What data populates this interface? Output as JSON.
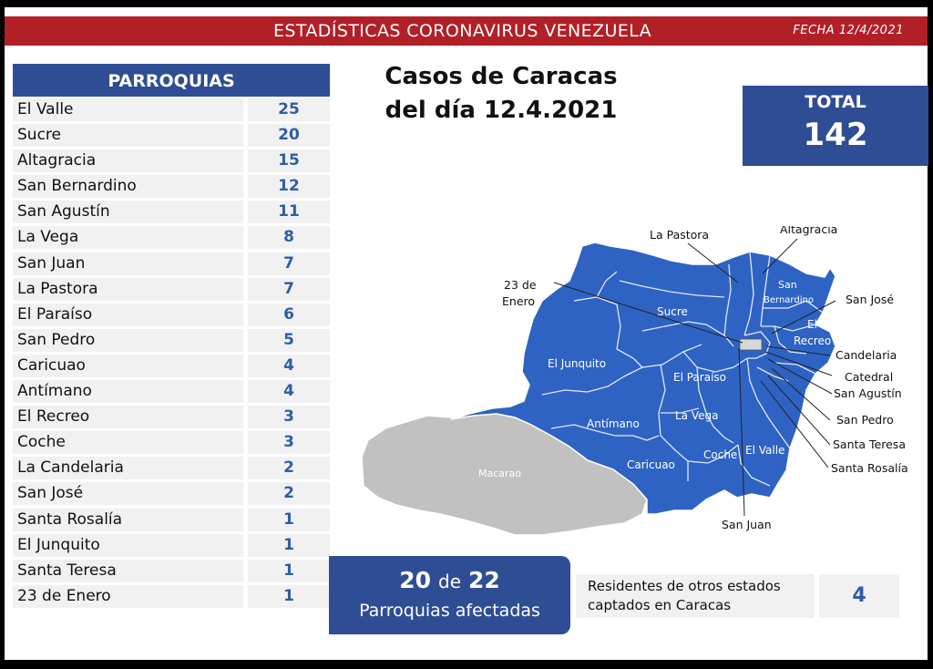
{
  "header": {
    "title": "ESTADÍSTICAS CORONAVIRUS VENEZUELA",
    "date": "FECHA 12/4/2021"
  },
  "table": {
    "header": "PARROQUIAS",
    "rows": [
      {
        "name": "El Valle",
        "value": "25"
      },
      {
        "name": "Sucre",
        "value": "20"
      },
      {
        "name": "Altagracia",
        "value": "15"
      },
      {
        "name": "San Bernardino",
        "value": "12"
      },
      {
        "name": "San Agustín",
        "value": "11"
      },
      {
        "name": "La Vega",
        "value": "8"
      },
      {
        "name": "San Juan",
        "value": "7"
      },
      {
        "name": "La Pastora",
        "value": "7"
      },
      {
        "name": "El Paraíso",
        "value": "6"
      },
      {
        "name": "San Pedro",
        "value": "5"
      },
      {
        "name": "Caricuao",
        "value": "4"
      },
      {
        "name": "Antímano",
        "value": "4"
      },
      {
        "name": "El Recreo",
        "value": "3"
      },
      {
        "name": "Coche",
        "value": "3"
      },
      {
        "name": "La Candelaria",
        "value": "2"
      },
      {
        "name": "San José",
        "value": "2"
      },
      {
        "name": "Santa Rosalía",
        "value": "1"
      },
      {
        "name": "El Junquito",
        "value": "1"
      },
      {
        "name": "Santa Teresa",
        "value": "1"
      },
      {
        "name": "23 de Enero",
        "value": "1"
      }
    ]
  },
  "map_title": {
    "line1": "Casos de Caracas",
    "line2": "del día 12.4.2021"
  },
  "total": {
    "label": "TOTAL",
    "value": "142"
  },
  "map": {
    "colors": {
      "affected": "#2e63c4",
      "unaffected": "#c1c1c1",
      "border": "#ffffff",
      "leader": "#222222"
    },
    "inner_labels": {
      "sucre": "Sucre",
      "el_junquito": "El Junquito",
      "el_paraiso": "El Paraíso",
      "antimano": "Antímano",
      "la_vega": "La Vega",
      "caricuao": "Caricuao",
      "coche": "Coche",
      "el_valle": "El Valle",
      "macarao": "Macarao",
      "san_bernardino_1": "San",
      "san_bernardino_2": "Bernardino",
      "el_recreo_1": "El",
      "el_recreo_2": "Recreo"
    },
    "callouts": {
      "la_pastora": "La Pastora",
      "altagracia": "Altagracia",
      "veintitres_1": "23 de",
      "veintitres_2": "Enero",
      "san_jose": "San José",
      "candelaria": "Candelaria",
      "catedral": "Catedral",
      "san_agustin": "San Agustín",
      "san_pedro": "San Pedro",
      "santa_teresa": "Santa Teresa",
      "santa_rosalia": "Santa Rosalía",
      "san_juan": "San Juan"
    }
  },
  "affected": {
    "count": "20",
    "connector": "de",
    "total": "22",
    "label": "Parroquias afectadas"
  },
  "residents": {
    "label_line1": "Residentes de otros estados",
    "label_line2": "captados en Caracas",
    "value": "4"
  }
}
